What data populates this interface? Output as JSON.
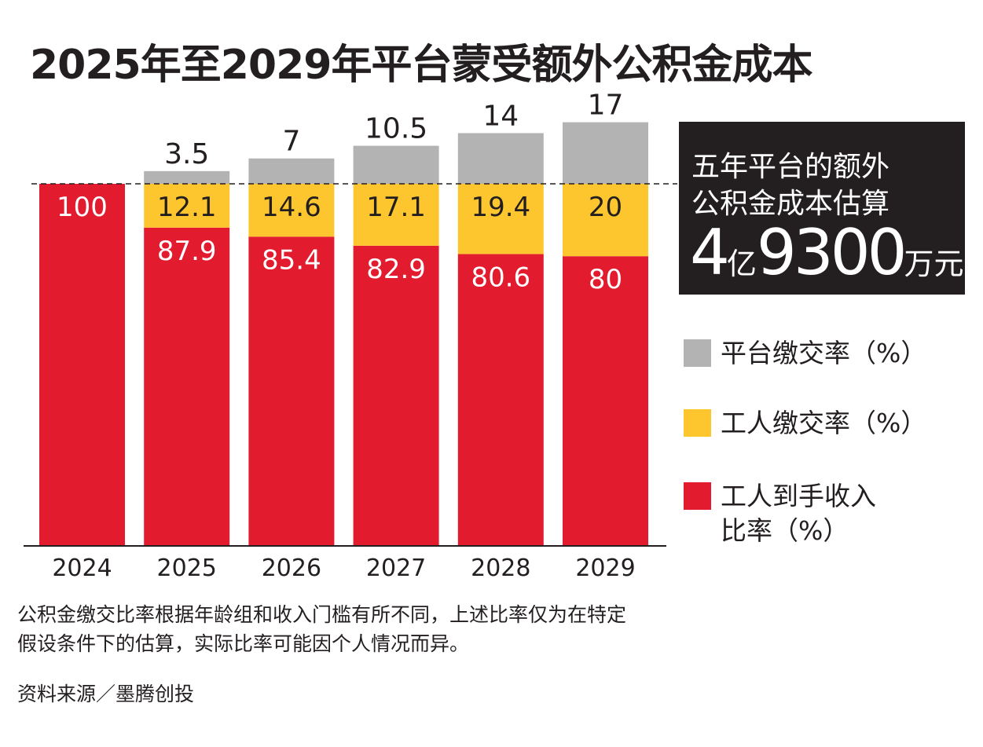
{
  "chart_data": {
    "type": "bar",
    "stacked": true,
    "title": "2025年至2029年平台蒙受额外公积金成本",
    "categories": [
      "2024",
      "2025",
      "2026",
      "2027",
      "2028",
      "2029"
    ],
    "series": [
      {
        "name": "工人到手收入比率（%）",
        "color": "#e31b2e",
        "values": [
          100,
          87.9,
          85.4,
          82.9,
          80.6,
          80
        ]
      },
      {
        "name": "工人缴交率（%）",
        "color": "#fdc62f",
        "values": [
          0,
          12.1,
          14.6,
          17.1,
          19.4,
          20
        ]
      },
      {
        "name": "平台缴交率（%）",
        "color": "#b3b3b3",
        "values": [
          0,
          3.5,
          7,
          10.5,
          14,
          17
        ]
      }
    ],
    "reference_line": 100,
    "ylim": [
      0,
      117
    ],
    "grid": false,
    "legend_placement": "right"
  },
  "summary": {
    "line1": "五年平台的额外",
    "line2": "公积金成本估算",
    "num1": "4",
    "unit1": "亿",
    "num2": "9300",
    "unit2": "万元"
  },
  "legend": [
    {
      "label": "平台缴交率（%）",
      "color": "#b3b3b3"
    },
    {
      "label": "工人缴交率（%）",
      "color": "#fdc62f"
    },
    {
      "label": "工人到手收入\n比率（%）",
      "color": "#e31b2e"
    }
  ],
  "note": "公积金缴交比率根据年龄组和收入门槛有所不同，上述比率仅为在特定\n假设条件下的估算，实际比率可能因个人情况而异。",
  "source": "资料来源／墨腾创投"
}
